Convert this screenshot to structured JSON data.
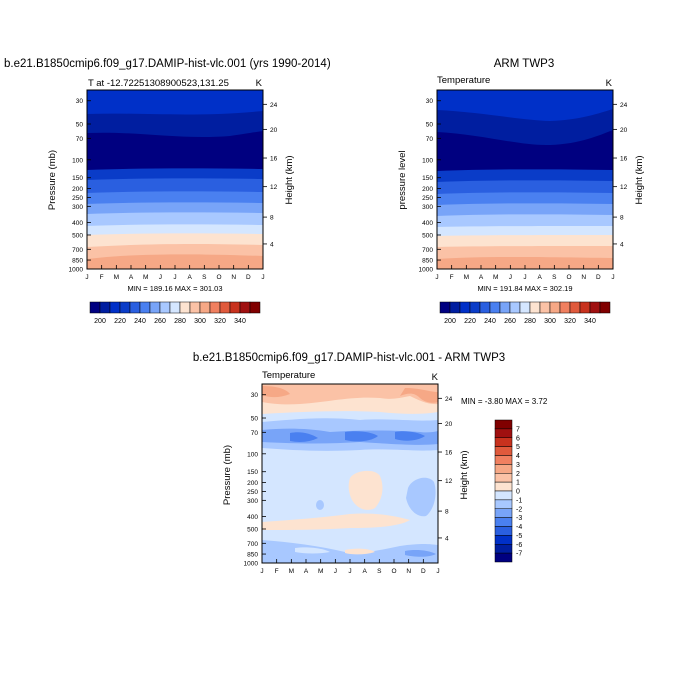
{
  "chart_data": [
    {
      "type": "heatmap",
      "title": "b.e21.B1850cmip6.f09_g17.DAMIP-hist-vlc.001 (yrs 1990-2014)",
      "subtitle_left": "T at -12.72251308900523,131.25",
      "subtitle_right": "K",
      "xlabel": "",
      "ylabel": "Pressure (mb)",
      "ylabel_right": "Height (km)",
      "x_ticks": [
        "J",
        "F",
        "M",
        "A",
        "M",
        "J",
        "J",
        "A",
        "S",
        "O",
        "N",
        "D",
        "J"
      ],
      "y_ticks": [
        "30",
        "50",
        "70",
        "100",
        "150",
        "200",
        "250",
        "300",
        "400",
        "500",
        "700",
        "850",
        "1000"
      ],
      "y_ticks_right": [
        "24",
        "20",
        "16",
        "12",
        "8",
        "4"
      ],
      "minmax": "MIN = 189.16   MAX = 301.03",
      "colorbar_labels": [
        "200",
        "220",
        "240",
        "260",
        "280",
        "300",
        "320",
        "340"
      ],
      "colormap": "blue-white-red",
      "layers": [
        {
          "level": "top",
          "level_index": 0,
          "color": "#0030c8"
        },
        {
          "level": "50",
          "level_index": 1,
          "color": "#001ea0"
        },
        {
          "level": "70-100",
          "level_index": 2,
          "color": "#000080"
        },
        {
          "level": "150",
          "level_index": 3,
          "color": "#0a3cc8"
        },
        {
          "level": "200",
          "level_index": 4,
          "color": "#2a5fe0"
        },
        {
          "level": "250",
          "level_index": 5,
          "color": "#4a80f0"
        },
        {
          "level": "300",
          "level_index": 6,
          "color": "#78a4f8"
        },
        {
          "level": "400",
          "level_index": 7,
          "color": "#a8c8ff"
        },
        {
          "level": "500",
          "level_index": 8,
          "color": "#d4e6ff"
        },
        {
          "level": "700",
          "level_index": 9,
          "color": "#fde3d0"
        },
        {
          "level": "850",
          "level_index": 10,
          "color": "#fbc2a6"
        },
        {
          "level": "1000",
          "level_index": 11,
          "color": "#f6a886"
        }
      ]
    },
    {
      "type": "heatmap",
      "title": "ARM TWP3",
      "subtitle_left": "Temperature",
      "subtitle_right": "K",
      "ylabel": "pressure level",
      "ylabel_right": "Height (km)",
      "x_ticks": [
        "J",
        "F",
        "M",
        "A",
        "M",
        "J",
        "J",
        "A",
        "S",
        "O",
        "N",
        "D",
        "J"
      ],
      "y_ticks": [
        "30",
        "50",
        "70",
        "100",
        "150",
        "200",
        "250",
        "300",
        "400",
        "500",
        "700",
        "850",
        "1000"
      ],
      "y_ticks_right": [
        "24",
        "20",
        "16",
        "12",
        "8",
        "4"
      ],
      "minmax": "MIN = 191.84   MAX = 302.19",
      "colorbar_labels": [
        "200",
        "220",
        "240",
        "260",
        "280",
        "300",
        "320",
        "340"
      ],
      "colormap": "blue-white-red"
    },
    {
      "type": "heatmap",
      "title": "b.e21.B1850cmip6.f09_g17.DAMIP-hist-vlc.001 - ARM TWP3",
      "subtitle_left": "Temperature",
      "subtitle_right": "K",
      "ylabel": "Pressure (mb)",
      "ylabel_right": "Height (km)",
      "x_ticks": [
        "J",
        "F",
        "M",
        "A",
        "M",
        "J",
        "J",
        "A",
        "S",
        "O",
        "N",
        "D",
        "J"
      ],
      "y_ticks": [
        "30",
        "50",
        "70",
        "100",
        "150",
        "200",
        "250",
        "300",
        "400",
        "500",
        "700",
        "850",
        "1000"
      ],
      "y_ticks_right": [
        "24",
        "20",
        "16",
        "12",
        "8",
        "4"
      ],
      "minmax": "MIN =  -3.80   MAX =   3.72",
      "colorbar_labels": [
        "7",
        "6",
        "5",
        "4",
        "3",
        "2",
        "1",
        "0",
        "-1",
        "-2",
        "-3",
        "-4",
        "-5",
        "-6",
        "-7"
      ],
      "colormap": "blue-white-red (diff)"
    }
  ],
  "colors": {
    "axis": "#000000",
    "background": "#ffffff"
  }
}
